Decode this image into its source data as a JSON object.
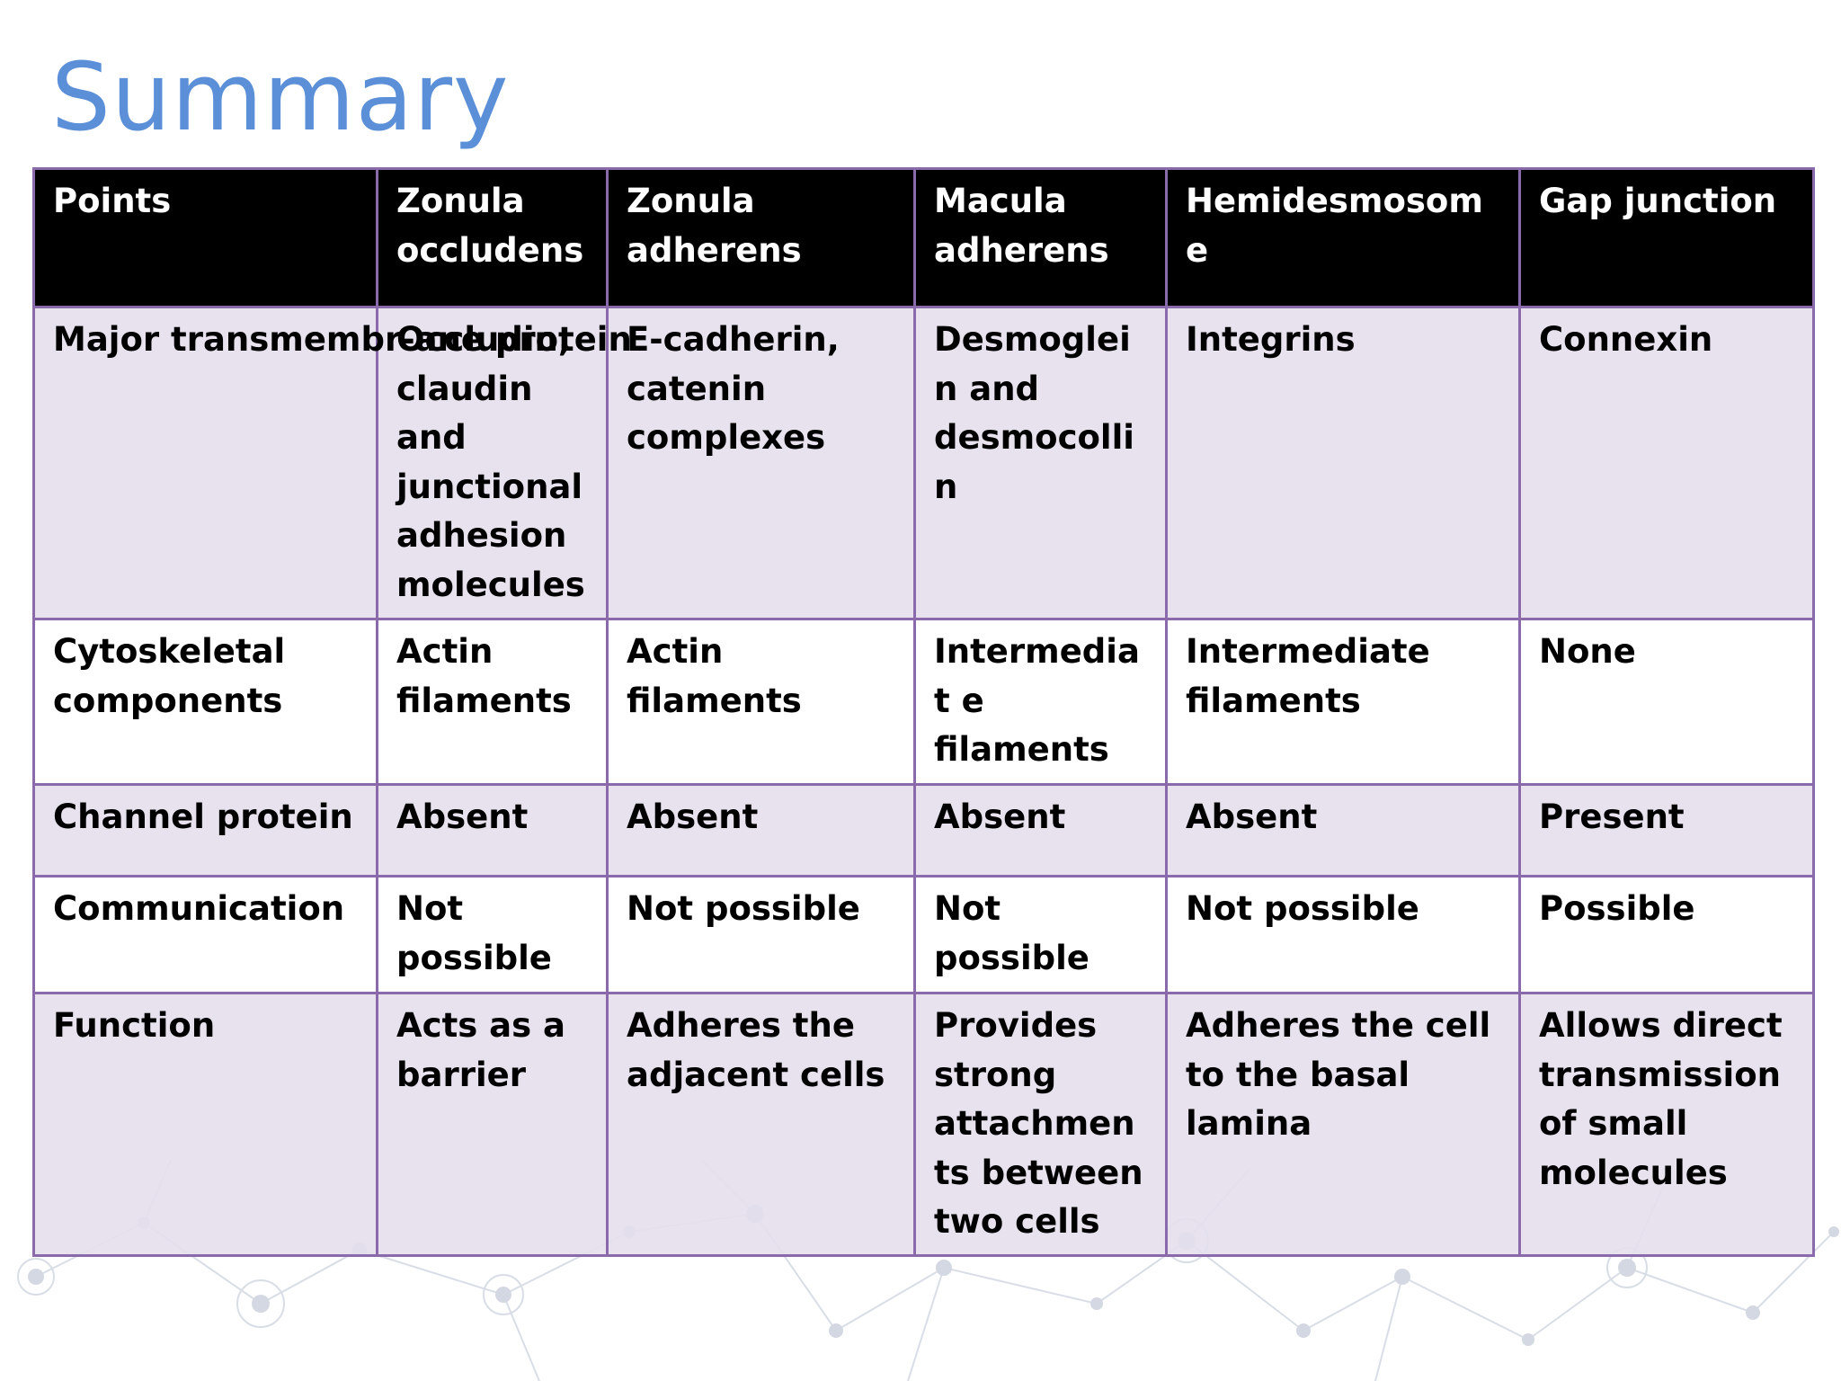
{
  "title": "Summary",
  "table": {
    "headers": [
      "Points",
      "Zonula occludens",
      "Zonula adherens",
      "Macula adherens",
      "Hemidesmosome",
      "Gap junction"
    ],
    "rows": [
      [
        "Major transmembr-ane protein",
        "Occludin, claudin and junctional adhesion molecules",
        "E-cadherin, catenin complexes",
        "Desmoglein and desmocollin",
        "Integrins",
        "Connexin"
      ],
      [
        "Cytoskeletal components",
        "Actin filaments",
        "Actin filaments",
        "Intermediat e filaments",
        "Intermediate filaments",
        "None"
      ],
      [
        "Channel protein",
        "Absent",
        "Absent",
        "Absent",
        "Absent",
        "Present"
      ],
      [
        "Communication",
        "Not possible",
        "Not possible",
        "Not possible",
        "Not possible",
        "Possible"
      ],
      [
        "Function",
        "Acts as a barrier",
        "Adheres the adjacent cells",
        "Provides strong attachments between two cells",
        "Adheres the cell to the basal lamina",
        "Allows direct transmission of small molecules"
      ]
    ]
  },
  "colors": {
    "title": "#5b8fd8",
    "header_bg": "#000000",
    "header_text": "#ffffff",
    "border": "#8a6aaa",
    "row_shade": "#e4dfec",
    "row_white": "#ffffff"
  }
}
